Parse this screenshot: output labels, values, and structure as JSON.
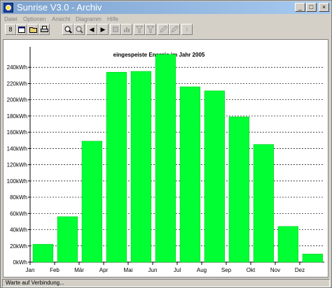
{
  "window": {
    "title": "Sunrise V3.0 - Archiv",
    "controls": {
      "minimize": "_",
      "maximize": "□",
      "close": "×"
    }
  },
  "menu": [
    {
      "label": "Datei"
    },
    {
      "label": "Optionen"
    },
    {
      "label": "Ansicht"
    },
    {
      "label": "Diagramm"
    },
    {
      "label": "Hilfe"
    }
  ],
  "toolbar": [
    {
      "name": "digit-8-icon",
      "glyph": "8",
      "enabled": true
    },
    {
      "name": "calendar-icon",
      "glyph": "",
      "enabled": true
    },
    {
      "name": "folder-icon",
      "glyph": "",
      "enabled": true
    },
    {
      "name": "printer-icon",
      "glyph": "",
      "enabled": true
    },
    {
      "name": "zoom-in-icon",
      "glyph": "",
      "enabled": true
    },
    {
      "name": "zoom-out-icon",
      "glyph": "",
      "enabled": true
    },
    {
      "name": "previous-icon",
      "glyph": "◀",
      "enabled": true
    },
    {
      "name": "next-icon",
      "glyph": "▶",
      "enabled": true
    },
    {
      "name": "rectangle-icon",
      "glyph": "",
      "enabled": false
    },
    {
      "name": "chart-icon",
      "glyph": "",
      "enabled": false
    },
    {
      "name": "filter-icon",
      "glyph": "",
      "enabled": false
    },
    {
      "name": "filter-2-icon",
      "glyph": "",
      "enabled": false
    },
    {
      "name": "edit-icon",
      "glyph": "",
      "enabled": false
    },
    {
      "name": "edit-2-icon",
      "glyph": "",
      "enabled": false
    },
    {
      "name": "info-icon",
      "glyph": "i",
      "enabled": false
    }
  ],
  "chart_data": {
    "type": "bar",
    "title": "eingespeiste Energie im Jahr 2005",
    "categories": [
      "Jan",
      "Feb",
      "Mär",
      "Apr",
      "Mai",
      "Jun",
      "Jul",
      "Aug",
      "Sep",
      "Okt",
      "Nov",
      "Dez"
    ],
    "values": [
      22,
      56,
      149,
      234,
      235,
      256,
      216,
      211,
      179,
      145,
      44,
      10
    ],
    "unit": "kWh",
    "ylim": [
      0,
      260
    ],
    "y_ticks": [
      0,
      20,
      40,
      60,
      80,
      100,
      120,
      140,
      160,
      180,
      200,
      220,
      240
    ],
    "y_tick_labels": [
      "0kWh",
      "20kWh",
      "40kWh",
      "60kWh",
      "80kWh",
      "100kWh",
      "120kWh",
      "140kWh",
      "160kWh",
      "180kWh",
      "200kWh",
      "220kWh",
      "240kWh"
    ],
    "xlabel": "",
    "ylabel": "",
    "grid": true,
    "bar_color": "#00ff33",
    "legend": false
  },
  "status": {
    "text": "Warte auf Verbindung..."
  }
}
